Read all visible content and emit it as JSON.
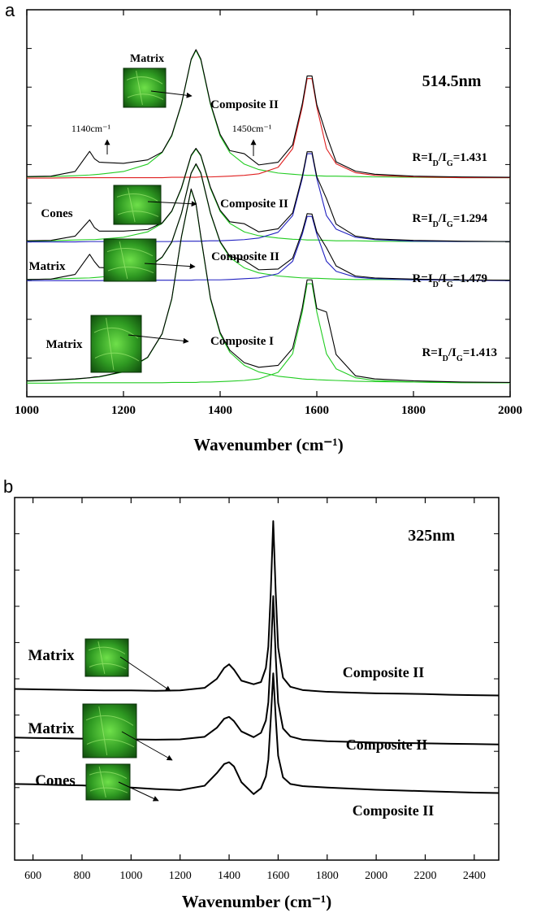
{
  "chart_data": [
    {
      "type": "line",
      "panel_label": "a",
      "xlabel": "Wavenumber (cm⁻¹)",
      "xlim": [
        1000,
        2000
      ],
      "xticks": [
        1000,
        1200,
        1400,
        1600,
        1800,
        2000
      ],
      "ylim": [
        0,
        100
      ],
      "x": [
        1000,
        1050,
        1100,
        1130,
        1140,
        1150,
        1200,
        1250,
        1280,
        1300,
        1320,
        1340,
        1350,
        1360,
        1380,
        1400,
        1420,
        1450,
        1480,
        1520,
        1550,
        1570,
        1580,
        1590,
        1600,
        1620,
        1640,
        1680,
        1720,
        1800,
        1900,
        2000
      ],
      "series": [
        {
          "color": "#22cc22",
          "values": [
            56.8,
            56.9,
            57.1,
            57.3,
            57.4,
            57.5,
            58.2,
            60.1,
            63.1,
            67.4,
            75.5,
            87.0,
            89.5,
            87.0,
            75.5,
            67.4,
            63.1,
            60.1,
            58.7,
            57.8,
            57.5,
            57.3,
            57.2,
            57.2,
            57.1,
            57.0,
            57.0,
            56.9,
            56.8,
            56.7,
            56.6,
            56.6
          ]
        },
        {
          "color": "#e02020",
          "values": [
            56.5,
            56.5,
            56.6,
            56.6,
            56.6,
            56.6,
            56.6,
            56.6,
            56.6,
            56.7,
            56.7,
            56.7,
            56.7,
            56.8,
            56.8,
            56.9,
            57.0,
            57.2,
            57.6,
            59.3,
            64.1,
            74.9,
            82.2,
            82.2,
            74.9,
            64.1,
            60.2,
            57.9,
            57.2,
            56.8,
            56.6,
            56.6
          ]
        },
        {
          "color": "#000000",
          "values": [
            56.9,
            57.0,
            58.2,
            63.4,
            61.5,
            60.6,
            60.3,
            61.2,
            63.2,
            67.6,
            75.7,
            87.2,
            89.7,
            87.3,
            75.8,
            67.8,
            63.6,
            62.8,
            59.9,
            60.6,
            65.1,
            75.7,
            82.9,
            82.9,
            75.5,
            67.6,
            60.7,
            58.3,
            57.5,
            57.0,
            56.8,
            56.7
          ]
        },
        {
          "color": "#22cc22",
          "values": [
            40.2,
            40.3,
            40.5,
            40.6,
            40.6,
            40.7,
            41.2,
            42.6,
            44.8,
            47.9,
            53.8,
            62.2,
            64.0,
            62.2,
            53.8,
            47.9,
            44.8,
            42.6,
            41.6,
            41.0,
            40.7,
            40.6,
            40.5,
            40.5,
            40.5,
            40.4,
            40.3,
            40.3,
            40.2,
            40.1,
            40.1,
            40.1
          ]
        },
        {
          "color": "#2020c0",
          "values": [
            40.0,
            40.0,
            40.0,
            40.1,
            40.1,
            40.1,
            40.1,
            40.1,
            40.1,
            40.1,
            40.2,
            40.2,
            40.2,
            40.2,
            40.3,
            40.3,
            40.4,
            40.6,
            41.0,
            42.5,
            46.8,
            56.4,
            62.8,
            62.8,
            56.4,
            46.8,
            43.3,
            41.2,
            40.6,
            40.2,
            40.1,
            40.1
          ]
        },
        {
          "color": "#000000",
          "values": [
            40.3,
            40.4,
            41.5,
            45.7,
            43.7,
            42.8,
            42.8,
            43.2,
            44.9,
            48.0,
            54.0,
            62.4,
            64.2,
            62.4,
            54.1,
            48.2,
            45.2,
            44.7,
            42.6,
            43.4,
            47.5,
            57.0,
            63.3,
            63.3,
            56.9,
            51.2,
            44.6,
            41.5,
            40.8,
            40.4,
            40.2,
            40.1
          ]
        },
        {
          "color": "#22cc22",
          "values": [
            30.3,
            30.4,
            30.6,
            30.7,
            30.8,
            30.9,
            31.5,
            33.3,
            36.0,
            39.9,
            47.3,
            57.7,
            60.0,
            57.7,
            47.3,
            39.9,
            36.0,
            33.3,
            32.0,
            31.2,
            30.9,
            30.7,
            30.7,
            30.6,
            30.6,
            30.5,
            30.4,
            30.3,
            30.3,
            30.2,
            30.1,
            30.1
          ]
        },
        {
          "color": "#2020c0",
          "values": [
            30.0,
            30.0,
            30.0,
            30.0,
            30.0,
            30.0,
            30.1,
            30.1,
            30.1,
            30.1,
            30.1,
            30.1,
            30.2,
            30.2,
            30.2,
            30.2,
            30.3,
            30.5,
            30.7,
            31.8,
            35.0,
            42.0,
            46.6,
            46.6,
            42.0,
            35.0,
            32.4,
            30.9,
            30.5,
            30.2,
            30.1,
            30.0
          ]
        },
        {
          "color": "#000000",
          "values": [
            30.3,
            30.4,
            31.6,
            36.8,
            34.9,
            33.4,
            33.1,
            33.4,
            36.1,
            40.0,
            47.4,
            57.8,
            60.2,
            57.9,
            47.5,
            40.1,
            36.3,
            35.2,
            32.8,
            33.0,
            35.8,
            42.7,
            47.3,
            47.2,
            42.6,
            38.5,
            33.8,
            31.2,
            30.7,
            30.4,
            30.2,
            30.1
          ]
        },
        {
          "color": "#22cc22",
          "values": [
            4.0,
            4.2,
            4.5,
            4.9,
            5.0,
            5.1,
            6.4,
            10.1,
            16.2,
            25.2,
            41.2,
            53.5,
            49.7,
            41.2,
            25.2,
            16.2,
            11.5,
            8.1,
            6.4,
            5.3,
            4.9,
            4.6,
            4.5,
            4.5,
            4.4,
            4.3,
            4.2,
            4.0,
            3.9,
            3.8,
            3.7,
            3.6
          ]
        },
        {
          "color": "#22cc22",
          "values": [
            3.5,
            3.5,
            3.6,
            3.6,
            3.6,
            3.6,
            3.6,
            3.6,
            3.6,
            3.7,
            3.7,
            3.7,
            3.7,
            3.8,
            3.8,
            3.9,
            4.0,
            4.2,
            4.6,
            6.3,
            11.1,
            21.9,
            29.2,
            29.2,
            21.9,
            11.1,
            7.2,
            4.9,
            4.2,
            3.8,
            3.6,
            3.6
          ]
        },
        {
          "color": "#000000",
          "values": [
            4.1,
            4.3,
            4.6,
            4.9,
            5.1,
            5.2,
            6.5,
            10.2,
            16.3,
            25.4,
            41.4,
            53.7,
            49.9,
            41.5,
            25.5,
            16.6,
            12.0,
            8.8,
            7.6,
            8.1,
            12.5,
            23.0,
            30.2,
            30.2,
            22.8,
            21.9,
            10.9,
            5.4,
            4.6,
            4.1,
            3.8,
            3.7
          ]
        }
      ],
      "annotations": [
        "Matrix",
        "514.5nm",
        "Composite II",
        "1140cm⁻¹",
        "1450cm⁻¹",
        "Cones",
        "Composite II",
        "Matrix",
        "Composite II",
        "Matrix",
        "Composite I"
      ],
      "ratio_labels": [
        [
          "R=I",
          "D",
          "/I",
          "G",
          "=1.431"
        ],
        [
          "R=I",
          "D",
          "/I",
          "G",
          "=1.294"
        ],
        [
          "R=I",
          "D",
          "/I",
          "G",
          "=1.479"
        ],
        [
          "R=I",
          "D",
          "/I",
          "G",
          "=1.413"
        ]
      ]
    },
    {
      "type": "line",
      "panel_label": "b",
      "xlabel": "Wavenumber (cm⁻¹)",
      "xlim": [
        525,
        2500
      ],
      "xticks": [
        600,
        800,
        1000,
        1200,
        1400,
        1600,
        1800,
        2000,
        2200,
        2400
      ],
      "ylim": [
        0,
        100
      ],
      "x": [
        525,
        600,
        700,
        800,
        900,
        1000,
        1100,
        1200,
        1300,
        1350,
        1380,
        1400,
        1420,
        1450,
        1500,
        1530,
        1550,
        1560,
        1570,
        1580,
        1590,
        1600,
        1620,
        1650,
        1700,
        1800,
        1900,
        2000,
        2100,
        2200,
        2300,
        2400,
        2500
      ],
      "series": [
        {
          "color": "#000000",
          "values": [
            47.2,
            47.1,
            47.0,
            46.9,
            46.8,
            46.8,
            46.7,
            46.8,
            47.5,
            50.0,
            53.0,
            54.0,
            52.5,
            49.5,
            48.5,
            49.1,
            53.0,
            58.9,
            74.0,
            93.5,
            74.0,
            58.6,
            50.3,
            47.8,
            46.9,
            46.4,
            46.2,
            46.0,
            45.9,
            45.8,
            45.6,
            45.5,
            45.4
          ]
        },
        {
          "color": "#000000",
          "values": [
            33.8,
            33.7,
            33.6,
            33.5,
            33.4,
            33.3,
            33.2,
            33.3,
            34.0,
            36.5,
            39.0,
            39.5,
            38.3,
            35.5,
            33.9,
            35.1,
            38.5,
            43.5,
            56.3,
            72.8,
            56.3,
            43.4,
            36.3,
            34.1,
            33.2,
            32.8,
            32.6,
            32.4,
            32.3,
            32.2,
            32.1,
            32.0,
            31.9
          ]
        },
        {
          "color": "#000000",
          "values": [
            21.0,
            20.9,
            20.7,
            20.6,
            20.3,
            20.0,
            19.6,
            19.3,
            20.5,
            24.0,
            26.5,
            27.0,
            25.8,
            21.5,
            18.2,
            19.8,
            23.1,
            27.7,
            39.0,
            51.5,
            39.5,
            28.8,
            22.8,
            21.0,
            20.4,
            20.0,
            19.7,
            19.4,
            19.2,
            19.0,
            18.8,
            18.6,
            18.5
          ]
        }
      ],
      "annotations": [
        "325nm",
        "Matrix",
        "Composite II",
        "Matrix",
        "Composite II",
        "Cones",
        "Composite II"
      ]
    }
  ]
}
